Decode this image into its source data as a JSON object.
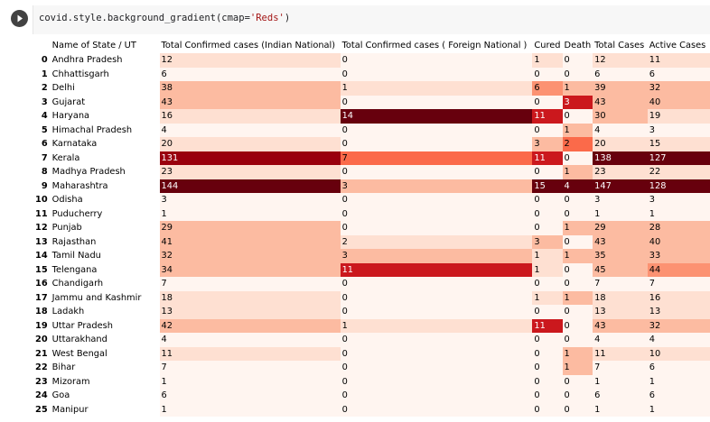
{
  "code": {
    "prefix": "covid.style.background_gradient(cmap=",
    "arg": "'Reds'",
    "suffix": ")"
  },
  "columns": [
    "Name of State / UT",
    "Total Confirmed cases (Indian National)",
    "Total Confirmed cases ( Foreign National )",
    "Cured",
    "Death",
    "Total Cases",
    "Active Cases"
  ],
  "column_widths": [
    126,
    201,
    214,
    31,
    32,
    61,
    70
  ],
  "colors": {
    "c0": "#fff5f0",
    "c1": "#fee0d2",
    "c2": "#fcbba1",
    "c3": "#fc9272",
    "c4": "#fb6a4a",
    "c5": "#ef3b2c",
    "c6": "#cb181d",
    "c7": "#99000d",
    "c8": "#67000d"
  },
  "rows": [
    {
      "i": "0",
      "name": "Andhra Pradesh",
      "ind": "12",
      "frn": "0",
      "cur": "1",
      "dth": "0",
      "tot": "12",
      "act": "11"
    },
    {
      "i": "1",
      "name": "Chhattisgarh",
      "ind": "6",
      "frn": "0",
      "cur": "0",
      "dth": "0",
      "tot": "6",
      "act": "6"
    },
    {
      "i": "2",
      "name": "Delhi",
      "ind": "38",
      "frn": "1",
      "cur": "6",
      "dth": "1",
      "tot": "39",
      "act": "32"
    },
    {
      "i": "3",
      "name": "Gujarat",
      "ind": "43",
      "frn": "0",
      "cur": "0",
      "dth": "3",
      "tot": "43",
      "act": "40"
    },
    {
      "i": "4",
      "name": "Haryana",
      "ind": "16",
      "frn": "14",
      "cur": "11",
      "dth": "0",
      "tot": "30",
      "act": "19"
    },
    {
      "i": "5",
      "name": "Himachal Pradesh",
      "ind": "4",
      "frn": "0",
      "cur": "0",
      "dth": "1",
      "tot": "4",
      "act": "3"
    },
    {
      "i": "6",
      "name": "Karnataka",
      "ind": "20",
      "frn": "0",
      "cur": "3",
      "dth": "2",
      "tot": "20",
      "act": "15"
    },
    {
      "i": "7",
      "name": "Kerala",
      "ind": "131",
      "frn": "7",
      "cur": "11",
      "dth": "0",
      "tot": "138",
      "act": "127"
    },
    {
      "i": "8",
      "name": "Madhya Pradesh",
      "ind": "23",
      "frn": "0",
      "cur": "0",
      "dth": "1",
      "tot": "23",
      "act": "22"
    },
    {
      "i": "9",
      "name": "Maharashtra",
      "ind": "144",
      "frn": "3",
      "cur": "15",
      "dth": "4",
      "tot": "147",
      "act": "128"
    },
    {
      "i": "10",
      "name": "Odisha",
      "ind": "3",
      "frn": "0",
      "cur": "0",
      "dth": "0",
      "tot": "3",
      "act": "3"
    },
    {
      "i": "11",
      "name": "Puducherry",
      "ind": "1",
      "frn": "0",
      "cur": "0",
      "dth": "0",
      "tot": "1",
      "act": "1"
    },
    {
      "i": "12",
      "name": "Punjab",
      "ind": "29",
      "frn": "0",
      "cur": "0",
      "dth": "1",
      "tot": "29",
      "act": "28"
    },
    {
      "i": "13",
      "name": "Rajasthan",
      "ind": "41",
      "frn": "2",
      "cur": "3",
      "dth": "0",
      "tot": "43",
      "act": "40"
    },
    {
      "i": "14",
      "name": "Tamil Nadu",
      "ind": "32",
      "frn": "3",
      "cur": "1",
      "dth": "1",
      "tot": "35",
      "act": "33"
    },
    {
      "i": "15",
      "name": "Telengana",
      "ind": "34",
      "frn": "11",
      "cur": "1",
      "dth": "0",
      "tot": "45",
      "act": "44"
    },
    {
      "i": "16",
      "name": "Chandigarh",
      "ind": "7",
      "frn": "0",
      "cur": "0",
      "dth": "0",
      "tot": "7",
      "act": "7"
    },
    {
      "i": "17",
      "name": "Jammu and Kashmir",
      "ind": "18",
      "frn": "0",
      "cur": "1",
      "dth": "1",
      "tot": "18",
      "act": "16"
    },
    {
      "i": "18",
      "name": "Ladakh",
      "ind": "13",
      "frn": "0",
      "cur": "0",
      "dth": "0",
      "tot": "13",
      "act": "13"
    },
    {
      "i": "19",
      "name": "Uttar Pradesh",
      "ind": "42",
      "frn": "1",
      "cur": "11",
      "dth": "0",
      "tot": "43",
      "act": "32"
    },
    {
      "i": "20",
      "name": "Uttarakhand",
      "ind": "4",
      "frn": "0",
      "cur": "0",
      "dth": "0",
      "tot": "4",
      "act": "4"
    },
    {
      "i": "21",
      "name": "West Bengal",
      "ind": "11",
      "frn": "0",
      "cur": "0",
      "dth": "1",
      "tot": "11",
      "act": "10"
    },
    {
      "i": "22",
      "name": "Bihar",
      "ind": "7",
      "frn": "0",
      "cur": "0",
      "dth": "1",
      "tot": "7",
      "act": "6"
    },
    {
      "i": "23",
      "name": "Mizoram",
      "ind": "1",
      "frn": "0",
      "cur": "0",
      "dth": "0",
      "tot": "1",
      "act": "1"
    },
    {
      "i": "24",
      "name": "Goa",
      "ind": "6",
      "frn": "0",
      "cur": "0",
      "dth": "0",
      "tot": "6",
      "act": "6"
    },
    {
      "i": "25",
      "name": "Manipur",
      "ind": "1",
      "frn": "0",
      "cur": "0",
      "dth": "0",
      "tot": "1",
      "act": "1"
    }
  ]
}
